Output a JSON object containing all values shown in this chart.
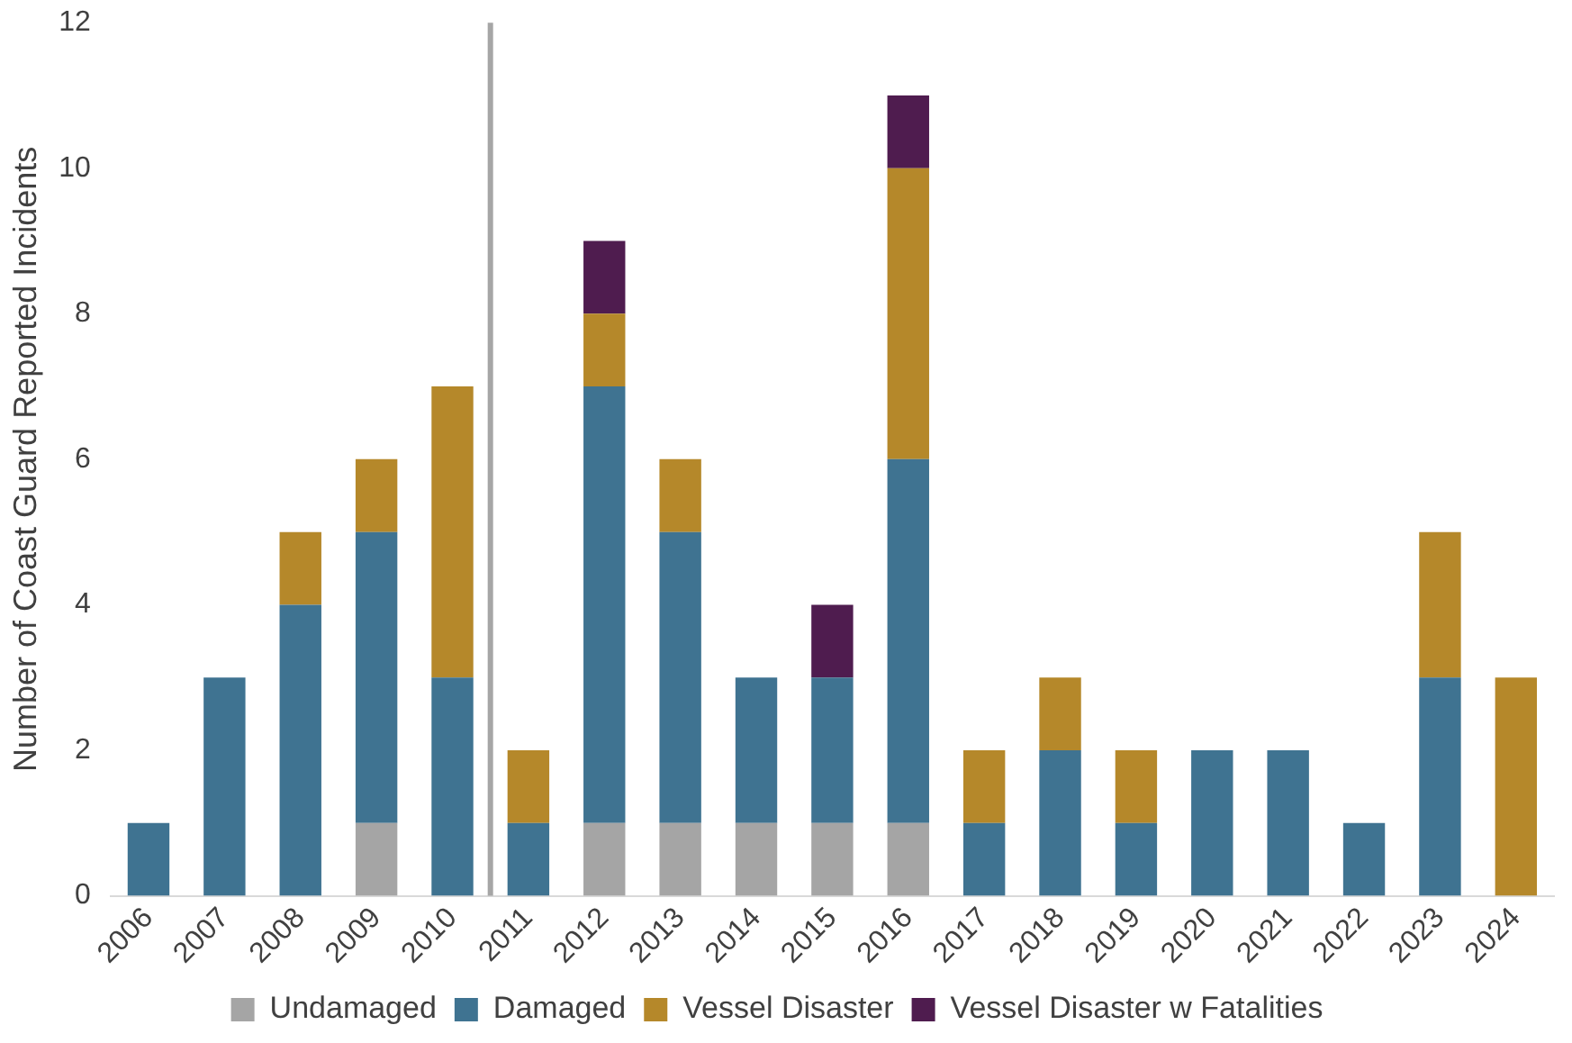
{
  "chart_data": {
    "type": "bar",
    "stacked": true,
    "ylabel": "Number of Coast Guard Reported Incidents",
    "categories": [
      "2006",
      "2007",
      "2008",
      "2009",
      "2010",
      "2011",
      "2012",
      "2013",
      "2014",
      "2015",
      "2016",
      "2017",
      "2018",
      "2019",
      "2020",
      "2021",
      "2022",
      "2023",
      "2024"
    ],
    "series": [
      {
        "name": "Undamaged",
        "color": "#a5a5a5",
        "values": [
          0,
          0,
          0,
          1,
          0,
          0,
          1,
          1,
          1,
          1,
          1,
          0,
          0,
          0,
          0,
          0,
          0,
          0,
          0
        ]
      },
      {
        "name": "Damaged",
        "color": "#3f7391",
        "values": [
          1,
          3,
          4,
          4,
          3,
          1,
          6,
          4,
          2,
          2,
          5,
          1,
          2,
          1,
          2,
          2,
          1,
          3,
          0
        ]
      },
      {
        "name": "Vessel Disaster",
        "color": "#b5882a",
        "values": [
          0,
          0,
          1,
          1,
          4,
          1,
          1,
          1,
          0,
          0,
          4,
          1,
          1,
          1,
          0,
          0,
          0,
          2,
          3
        ]
      },
      {
        "name": "Vessel Disaster w Fatalities",
        "color": "#4f1c4f",
        "values": [
          0,
          0,
          0,
          0,
          0,
          0,
          1,
          0,
          0,
          1,
          1,
          0,
          0,
          0,
          0,
          0,
          0,
          0,
          0
        ]
      }
    ],
    "ylim": [
      0,
      12
    ],
    "yticks": [
      0,
      2,
      4,
      6,
      8,
      10,
      12
    ],
    "grid": false,
    "legend": "bottom"
  }
}
